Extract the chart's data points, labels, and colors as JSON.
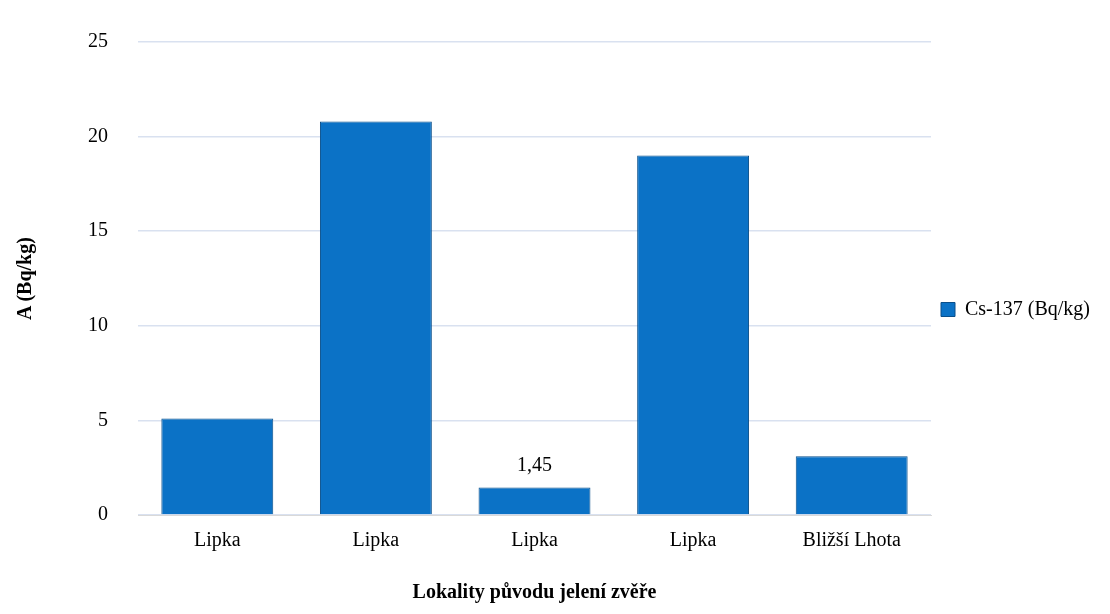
{
  "chart_data": {
    "type": "bar",
    "xlabel": "Lokality původu jelení zvěře",
    "ylabel": "A (Bq/kg)",
    "categories": [
      "Lipka",
      "Lipka",
      "Lipka",
      "Lipka",
      "Bližší Lhota"
    ],
    "series": [
      {
        "name": "Cs-137 (Bq/kg)",
        "color": "#0b72c6",
        "values": [
          5.1,
          20.8,
          1.45,
          19.0,
          3.1
        ],
        "value_labels": [
          null,
          null,
          "1,45",
          null,
          null
        ]
      }
    ],
    "ylim": [
      0,
      25
    ],
    "yticks": [
      0,
      5,
      10,
      15,
      20,
      25
    ],
    "grid": "y",
    "legend": "right"
  }
}
